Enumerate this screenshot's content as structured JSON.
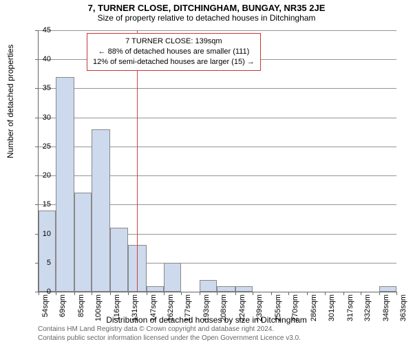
{
  "title": "7, TURNER CLOSE, DITCHINGHAM, BUNGAY, NR35 2JE",
  "subtitle": "Size of property relative to detached houses in Ditchingham",
  "ylabel": "Number of detached properties",
  "xlabel": "Distribution of detached houses by size in Ditchingham",
  "footer1": "Contains HM Land Registry data © Crown copyright and database right 2024.",
  "footer2": "Contains public sector information licensed under the Open Government Licence v3.0.",
  "chart": {
    "type": "histogram",
    "ylim": [
      0,
      45
    ],
    "ytick_step": 5,
    "bar_fill": "#cdd9ed",
    "bar_stroke": "#888888",
    "grid_color": "#666666",
    "background": "#ffffff",
    "refline_color": "#d04040",
    "refline_x": 139,
    "x_ticks": [
      54,
      69,
      85,
      100,
      116,
      131,
      147,
      162,
      177,
      193,
      208,
      224,
      239,
      255,
      270,
      286,
      301,
      317,
      332,
      348,
      363
    ],
    "x_unit": "sqm",
    "values": [
      14,
      37,
      17,
      28,
      11,
      8,
      1,
      5,
      0,
      2,
      1,
      1,
      0,
      0,
      0,
      0,
      0,
      0,
      0,
      1
    ]
  },
  "annot": {
    "line1": "7 TURNER CLOSE: 139sqm",
    "line2": "← 88% of detached houses are smaller (111)",
    "line3": "12% of semi-detached houses are larger (15) →"
  }
}
